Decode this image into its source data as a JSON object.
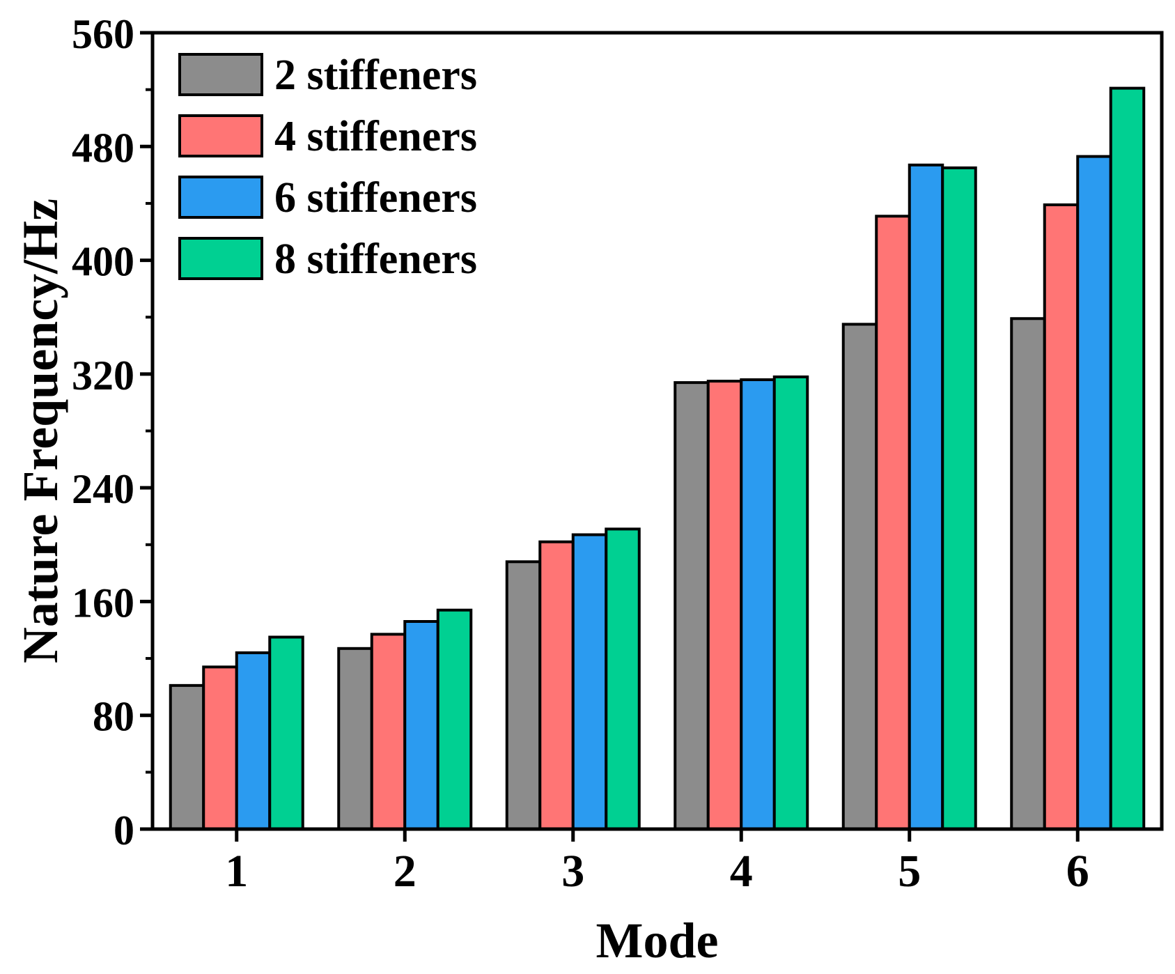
{
  "chart_data": {
    "type": "bar",
    "title": "",
    "xlabel": "Mode",
    "ylabel": "Nature Frequency/Hz",
    "categories": [
      "1",
      "2",
      "3",
      "4",
      "5",
      "6"
    ],
    "ylim": [
      0,
      560
    ],
    "yticks": [
      0,
      80,
      160,
      240,
      320,
      400,
      480,
      560
    ],
    "legend_position": "top-left",
    "series": [
      {
        "name": "2 stiffeners",
        "color": "#8c8c8c",
        "values": [
          101,
          127,
          188,
          314,
          355,
          359
        ]
      },
      {
        "name": "4 stiffeners",
        "color": "#ff7575",
        "values": [
          114,
          137,
          202,
          315,
          431,
          439
        ]
      },
      {
        "name": "6 stiffeners",
        "color": "#2b9bf0",
        "values": [
          124,
          146,
          207,
          316,
          467,
          473
        ]
      },
      {
        "name": "8 stiffeners",
        "color": "#00d092",
        "values": [
          135,
          154,
          211,
          318,
          465,
          521
        ]
      }
    ]
  }
}
